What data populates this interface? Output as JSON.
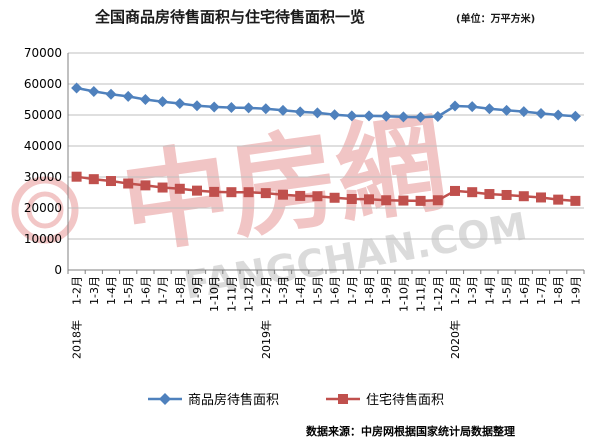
{
  "title": "全国商品房待售面积与住宅待售面积一览",
  "unit": "(单位：万平方米)",
  "source": "数据来源：中房网根据国家统计局数据整理",
  "watermark": {
    "brand": "中房網",
    "url": "FANGCHAN.COM"
  },
  "colors": {
    "series1": "#4f81bd",
    "series2": "#c0504d",
    "grid": "#bfbfbf",
    "watermark": "#d95b5b"
  },
  "chart_data": {
    "type": "line",
    "title": "全国商品房待售面积与住宅待售面积一览",
    "xlabel": "",
    "ylabel": "",
    "ylim": [
      0,
      70000
    ],
    "yticks": [
      0,
      10000,
      20000,
      30000,
      40000,
      50000,
      60000,
      70000
    ],
    "grid": true,
    "legend_position": "bottom",
    "categories": [
      "1-2月",
      "1-3月",
      "1-4月",
      "1-5月",
      "1-6月",
      "1-7月",
      "1-8月",
      "1-9月",
      "1-10月",
      "1-11月",
      "1-12月",
      "1-2月",
      "1-3月",
      "1-4月",
      "1-5月",
      "1-6月",
      "1-7月",
      "1-8月",
      "1-9月",
      "1-10月",
      "1-11月",
      "1-12月",
      "1-2月",
      "1-3月",
      "1-4月",
      "1-5月",
      "1-6月",
      "1-7月",
      "1-8月",
      "1-9月"
    ],
    "year_labels": [
      {
        "index": 0,
        "label": "2018年"
      },
      {
        "index": 11,
        "label": "2019年"
      },
      {
        "index": 22,
        "label": "2020年"
      }
    ],
    "series": [
      {
        "name": "商品房待售面积",
        "marker": "diamond",
        "color": "#4f81bd",
        "values": [
          58700,
          57600,
          56700,
          56000,
          55000,
          54300,
          53700,
          53000,
          52600,
          52400,
          52300,
          52000,
          51500,
          51000,
          50700,
          50100,
          49700,
          49700,
          49600,
          49400,
          49300,
          49500,
          52900,
          52700,
          52000,
          51500,
          51100,
          50500,
          50000,
          49600
        ]
      },
      {
        "name": "住宅待售面积",
        "marker": "square",
        "color": "#c0504d",
        "values": [
          30100,
          29300,
          28700,
          27900,
          27300,
          26600,
          26200,
          25600,
          25200,
          25100,
          25100,
          24800,
          24300,
          23900,
          23800,
          23300,
          22900,
          22800,
          22500,
          22400,
          22300,
          22500,
          25500,
          25100,
          24500,
          24200,
          23800,
          23400,
          22700,
          22300
        ]
      }
    ]
  }
}
